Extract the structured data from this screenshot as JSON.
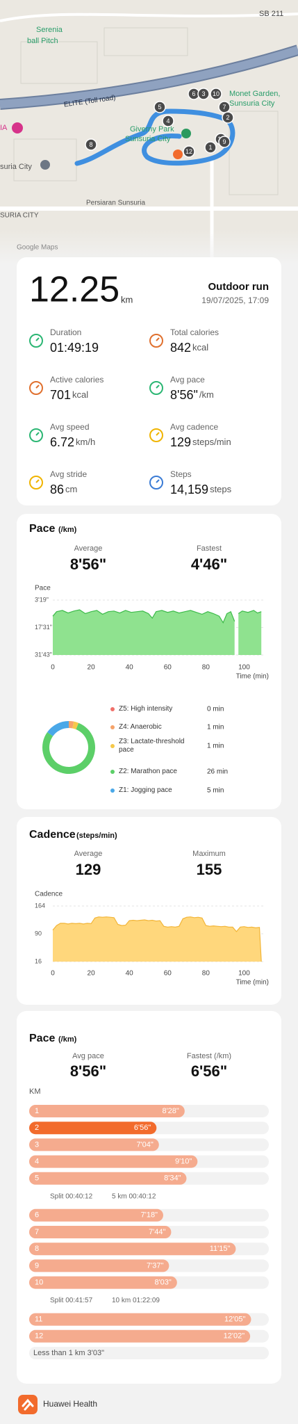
{
  "map": {
    "labels": [
      "SB 211",
      "Serenia",
      "ball Pitch",
      "ELITE (Toll road)",
      "Monet Garden,",
      "Sunsuria City",
      "Giverny Park",
      "Sunsuria City",
      "IA",
      "suria City",
      "SURIA CITY",
      "Persiaran Sunsuria",
      "Google Maps"
    ],
    "markers": [
      "6",
      "3",
      "10",
      "5",
      "7",
      "2",
      "4",
      "8",
      "1",
      "11",
      "9",
      "12"
    ]
  },
  "summary": {
    "distance": "12.25",
    "distance_unit": "km",
    "activity": "Outdoor run",
    "datetime": "19/07/2025, 17:09",
    "metrics": [
      {
        "label": "Duration",
        "value": "01:49:19"
      },
      {
        "label": "Total calories",
        "value": "842",
        "unit": "kcal"
      },
      {
        "label": "Active calories",
        "value": "701",
        "unit": "kcal"
      },
      {
        "label": "Avg pace",
        "value": "8'56\"",
        "unit": "/km"
      },
      {
        "label": "Avg speed",
        "value": "6.72",
        "unit": "km/h"
      },
      {
        "label": "Avg cadence",
        "value": "129",
        "unit": "steps/min"
      },
      {
        "label": "Avg stride",
        "value": "86",
        "unit": "cm"
      },
      {
        "label": "Steps",
        "value": "14,159",
        "unit": "steps"
      }
    ]
  },
  "chart_data": [
    {
      "type": "area",
      "title": "Pace",
      "unit": "(/km)",
      "stats": [
        {
          "label": "Average",
          "value": "8'56\""
        },
        {
          "label": "Fastest",
          "value": "4'46\""
        }
      ],
      "y_label": "Pace",
      "x_label": "Time (min)",
      "x": [
        0,
        2,
        5,
        8,
        11,
        14,
        17,
        20,
        23,
        26,
        29,
        32,
        35,
        38,
        41,
        44,
        47,
        50,
        52,
        54,
        57,
        60,
        63,
        66,
        69,
        72,
        75,
        78,
        81,
        84,
        87,
        89,
        91,
        93,
        95,
        96,
        97,
        99,
        102,
        105,
        107,
        109
      ],
      "values": [
        700,
        560,
        520,
        600,
        540,
        500,
        620,
        560,
        520,
        640,
        560,
        540,
        600,
        520,
        580,
        560,
        540,
        620,
        760,
        560,
        520,
        580,
        540,
        600,
        560,
        520,
        580,
        640,
        560,
        620,
        700,
        900,
        620,
        560,
        860,
        null,
        620,
        540,
        580,
        520,
        600,
        560
      ],
      "xlim": [
        0,
        110
      ],
      "xticks": [
        0,
        20,
        40,
        60,
        80,
        100
      ],
      "ylim": [
        199,
        1903
      ],
      "y_inverted": true,
      "yticks": [
        {
          "value": 199,
          "label": "3'19\""
        },
        {
          "value": 1051,
          "label": "17'31\""
        },
        {
          "value": 1903,
          "label": "31'43\""
        }
      ],
      "color": "#3dbb4a",
      "fill_color": "#8fe28f",
      "grid": true
    },
    {
      "type": "donut",
      "categories": [
        "Z5: High intensity",
        "Z4: Anaerobic",
        "Z3: Lactate-threshold pace",
        "Z2: Marathon pace",
        "Z1: Jogging pace"
      ],
      "values": [
        0,
        1,
        1,
        26,
        5
      ],
      "value_labels": [
        "0 min",
        "1 min",
        "1 min",
        "26 min",
        "5 min"
      ],
      "colors": [
        "#f0706a",
        "#f5a36a",
        "#f5c84a",
        "#5ccf68",
        "#4aa8e8"
      ]
    },
    {
      "type": "area",
      "title": "Cadence",
      "unit": "(steps/min)",
      "stats": [
        {
          "label": "Average",
          "value": 129
        },
        {
          "label": "Maximum",
          "value": 155
        }
      ],
      "y_label": "Cadence",
      "x_label": "Time (min)",
      "x": [
        0,
        2,
        4,
        6,
        8,
        10,
        12,
        14,
        16,
        18,
        20,
        22,
        24,
        26,
        28,
        30,
        32,
        34,
        36,
        38,
        40,
        42,
        44,
        46,
        48,
        50,
        52,
        54,
        56,
        58,
        60,
        62,
        64,
        66,
        68,
        70,
        72,
        74,
        76,
        78,
        80,
        82,
        84,
        86,
        88,
        90,
        92,
        94,
        96,
        98,
        100,
        102,
        104,
        106,
        108,
        109
      ],
      "values": [
        100,
        112,
        118,
        118,
        116,
        118,
        117,
        118,
        116,
        118,
        117,
        132,
        135,
        134,
        135,
        134,
        133,
        115,
        112,
        113,
        125,
        126,
        125,
        126,
        127,
        125,
        126,
        124,
        125,
        110,
        108,
        109,
        108,
        110,
        130,
        134,
        135,
        133,
        134,
        132,
        112,
        110,
        111,
        110,
        109,
        110,
        108,
        108,
        96,
        108,
        109,
        107,
        108,
        106,
        107,
        16
      ],
      "xlim": [
        0,
        110
      ],
      "xticks": [
        0,
        20,
        40,
        60,
        80,
        100
      ],
      "ylim": [
        16,
        164
      ],
      "yticks": [
        164,
        90,
        16
      ],
      "color": "#f2b538",
      "fill_color": "#ffd77c",
      "grid": true
    },
    {
      "type": "splits",
      "title": "Pace",
      "unit": "(/km)",
      "stats": [
        {
          "label": "Avg pace",
          "value": "8'56\""
        },
        {
          "label": "Fastest (/km)",
          "value": "6'56\""
        }
      ],
      "axis_label": "KM",
      "groups": [
        {
          "categories": [
            "1",
            "2",
            "3",
            "4",
            "5"
          ],
          "values": [
            508,
            416,
            424,
            550,
            514
          ],
          "value_labels": [
            "8'28\"",
            "6'56\"",
            "7'04\"",
            "9'10\"",
            "8'34\""
          ],
          "split": "Split 00:40:12",
          "total": "5 km 00:40:12"
        },
        {
          "categories": [
            "6",
            "7",
            "8",
            "9",
            "10"
          ],
          "values": [
            438,
            464,
            675,
            457,
            483
          ],
          "value_labels": [
            "7'18\"",
            "7'44\"",
            "11'15\"",
            "7'37\"",
            "8'03\""
          ],
          "split": "Split 00:41:57",
          "total": "10 km 01:22:09"
        },
        {
          "categories": [
            "11",
            "12"
          ],
          "values": [
            725,
            722
          ],
          "value_labels": [
            "12'05\"",
            "12'02\""
          ]
        }
      ],
      "remainder": "Less than 1 km 3'03\"",
      "color": "#f5ab8e",
      "highlight_color": "#f26b2c"
    }
  ],
  "footer": {
    "app": "Huawei Health"
  }
}
